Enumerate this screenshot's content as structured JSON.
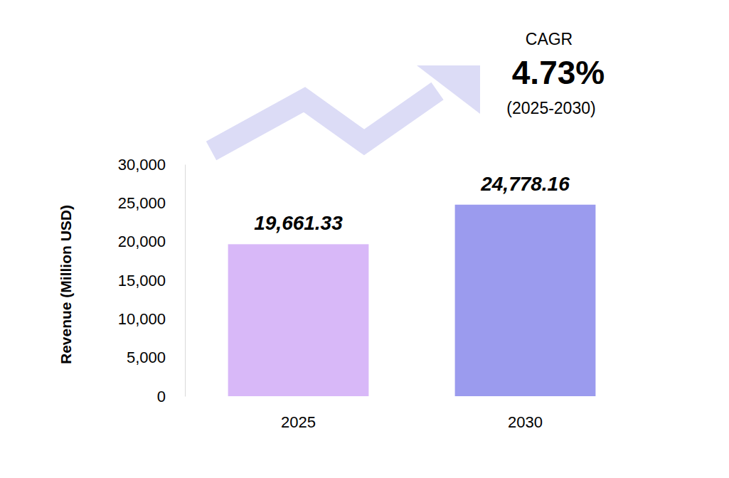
{
  "chart_data": {
    "type": "bar",
    "categories": [
      "2025",
      "2030"
    ],
    "values": [
      19661.33,
      24778.16
    ],
    "value_labels": [
      "19,661.33",
      "24,778.16"
    ],
    "colors": [
      "#d8b8f8",
      "#9b9bee"
    ],
    "y_label": "Revenue (Million USD)",
    "ylim": [
      0,
      30000
    ],
    "yticks": [
      0,
      {
        "value": 5000,
        "label": "5,000"
      },
      {
        "value": 10000,
        "label": "10,000"
      },
      {
        "value": 15000,
        "label": "15,000"
      },
      {
        "value": 20000,
        "label": "20,000"
      },
      {
        "value": 25000,
        "label": "25,000"
      },
      {
        "value": 30000,
        "label": "30,000"
      }
    ],
    "data_labels": true,
    "grid": false,
    "annotations": [
      "CAGR",
      "4.73%",
      "(2025-2030)"
    ]
  }
}
